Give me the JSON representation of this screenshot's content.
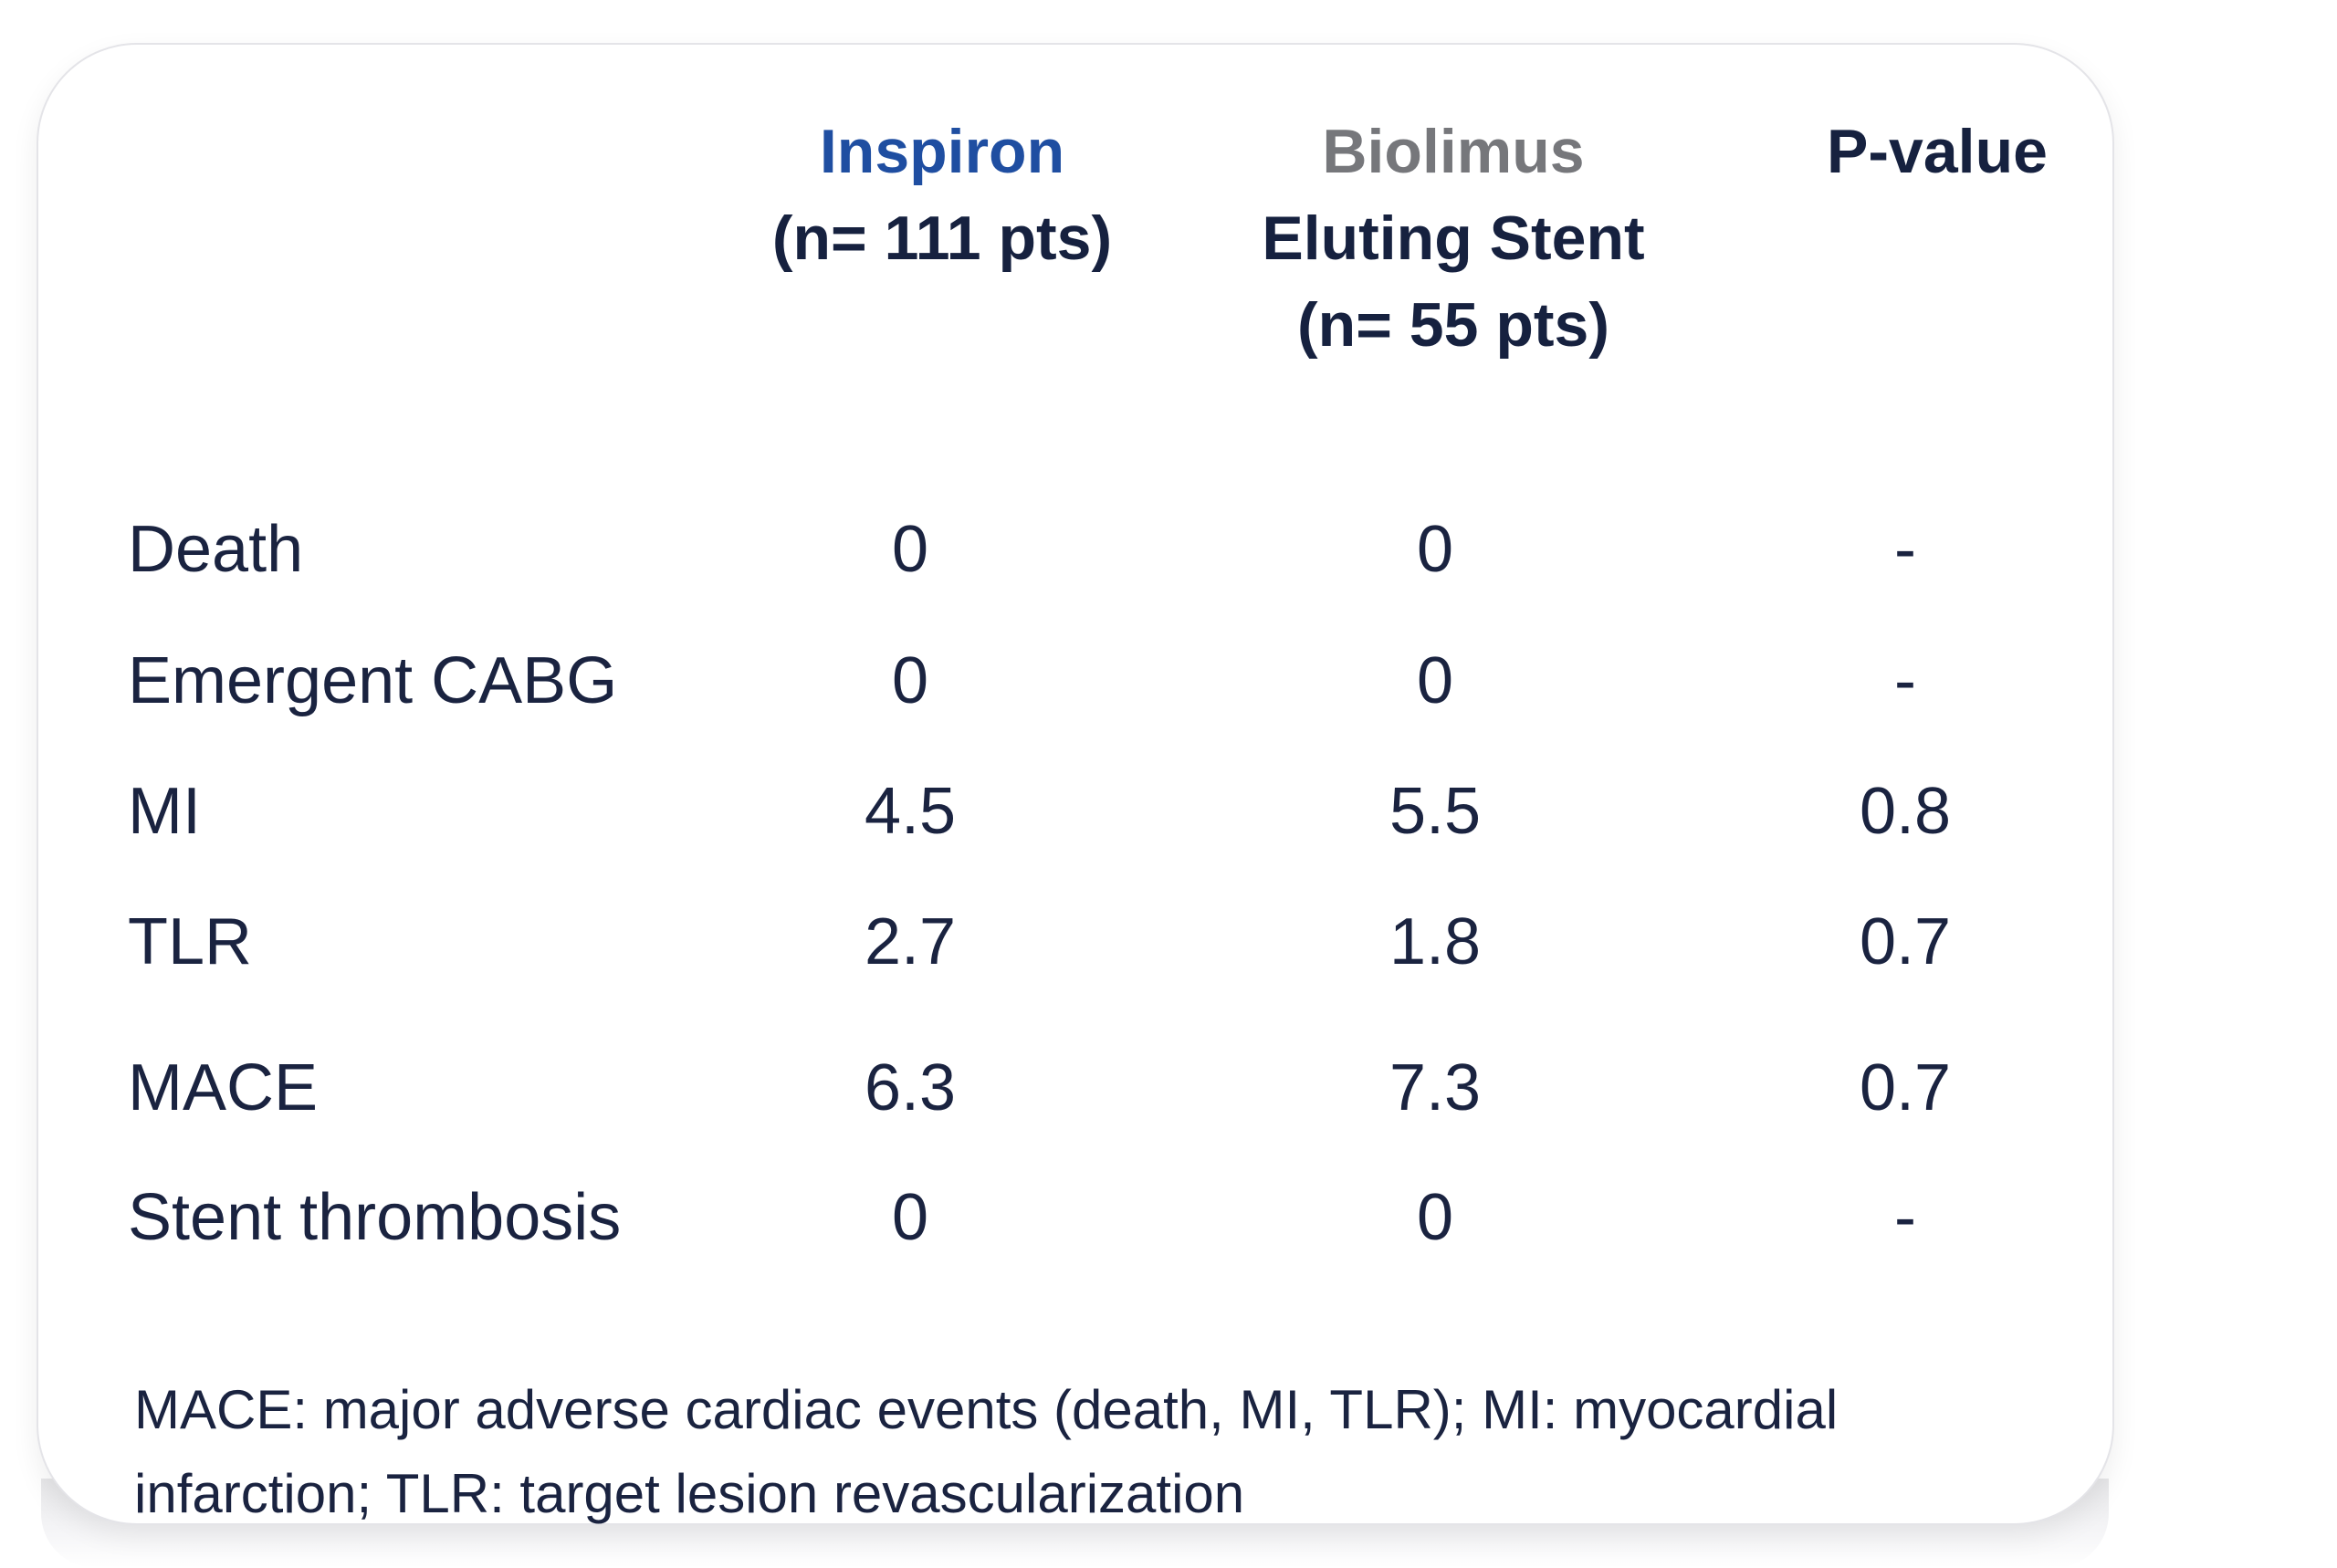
{
  "chart_data": {
    "type": "table",
    "columns": [
      {
        "lines": [
          "Inspiron",
          "(n= 111 pts)"
        ],
        "color": "#1f4ea1"
      },
      {
        "lines": [
          "Biolimus",
          "Eluting Stent",
          "(n= 55 pts)"
        ],
        "color": "#76777b"
      },
      {
        "lines": [
          "P-value"
        ],
        "color": "#16213f"
      }
    ],
    "rows": [
      {
        "label": "Death",
        "values": [
          "0",
          "0",
          "-"
        ]
      },
      {
        "label": "Emergent CABG",
        "values": [
          "0",
          "0",
          "-"
        ]
      },
      {
        "label": "MI",
        "values": [
          "4.5",
          "5.5",
          "0.8"
        ]
      },
      {
        "label": "TLR",
        "values": [
          "2.7",
          "1.8",
          "0.7"
        ]
      },
      {
        "label": "MACE",
        "values": [
          "6.3",
          "7.3",
          "0.7"
        ]
      },
      {
        "label": "Stent thrombosis",
        "values": [
          "0",
          "0",
          "-"
        ]
      }
    ],
    "footnote": [
      "MACE:  major adverse cardiac events (death, MI, TLR); MI: myocardial",
      "infarction; TLR: target lesion revascularization"
    ]
  }
}
